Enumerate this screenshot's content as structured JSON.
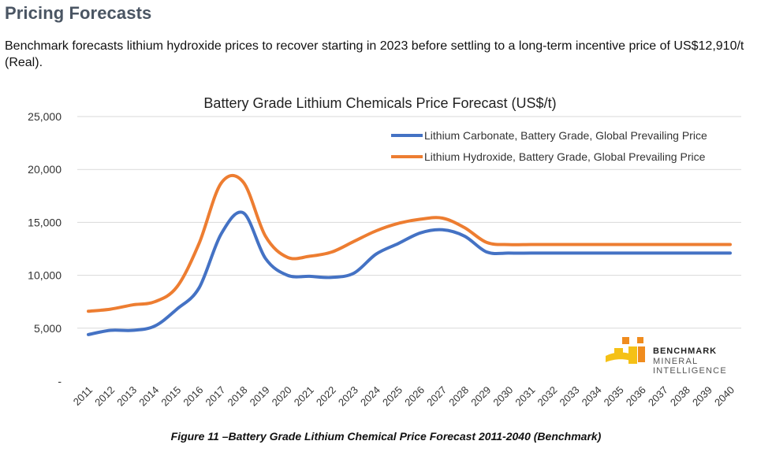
{
  "page": {
    "heading": "Pricing Forecasts",
    "intro": "Benchmark forecasts lithium hydroxide prices to recover starting in 2023 before settling to a long-term incentive price of US$12,910/t (Real).",
    "caption": "Figure 11 –Battery Grade Lithium Chemical Price Forecast 2011-2040 (Benchmark)"
  },
  "logo": {
    "line1": "BENCHMARK",
    "line2": "MINERAL",
    "line3": "INTELLIGENCE",
    "colors": {
      "yellow": "#f5c116",
      "orange": "#f08c1e"
    }
  },
  "chart_data": {
    "type": "line",
    "title": "Battery Grade Lithium Chemicals Price Forecast (US$/t)",
    "xlabel": "",
    "ylabel": "",
    "ylim": [
      0,
      25000
    ],
    "yticks": [
      0,
      5000,
      10000,
      15000,
      20000,
      25000
    ],
    "ytick_labels": [
      "-",
      "5,000",
      "10,000",
      "15,000",
      "20,000",
      "25,000"
    ],
    "grid": true,
    "legend_position": "top-right",
    "categories": [
      "2011",
      "2012",
      "2013",
      "2014",
      "2015",
      "2016",
      "2017",
      "2018",
      "2019",
      "2020",
      "2021",
      "2022",
      "2023",
      "2024",
      "2025",
      "2026",
      "2027",
      "2028",
      "2029",
      "2030",
      "2031",
      "2032",
      "2033",
      "2034",
      "2035",
      "2036",
      "2037",
      "2038",
      "2039",
      "2040"
    ],
    "series": [
      {
        "name": "Lithium Carbonate, Battery Grade, Global Prevailing Price",
        "color": "#4472c4",
        "values": [
          4400,
          4800,
          4800,
          5200,
          6800,
          8800,
          13900,
          15900,
          11600,
          10000,
          9900,
          9800,
          10200,
          12000,
          13000,
          14000,
          14300,
          13700,
          12200,
          12100,
          12100,
          12100,
          12100,
          12100,
          12100,
          12100,
          12100,
          12100,
          12100,
          12100
        ]
      },
      {
        "name": "Lithium Hydroxide, Battery Grade, Global Prevailing Price",
        "color": "#ed7d31",
        "values": [
          6600,
          6800,
          7200,
          7500,
          8900,
          13000,
          18700,
          18800,
          13700,
          11700,
          11800,
          12200,
          13200,
          14200,
          14900,
          15300,
          15400,
          14500,
          13100,
          12900,
          12910,
          12910,
          12910,
          12910,
          12910,
          12910,
          12910,
          12910,
          12910,
          12910
        ]
      }
    ]
  }
}
